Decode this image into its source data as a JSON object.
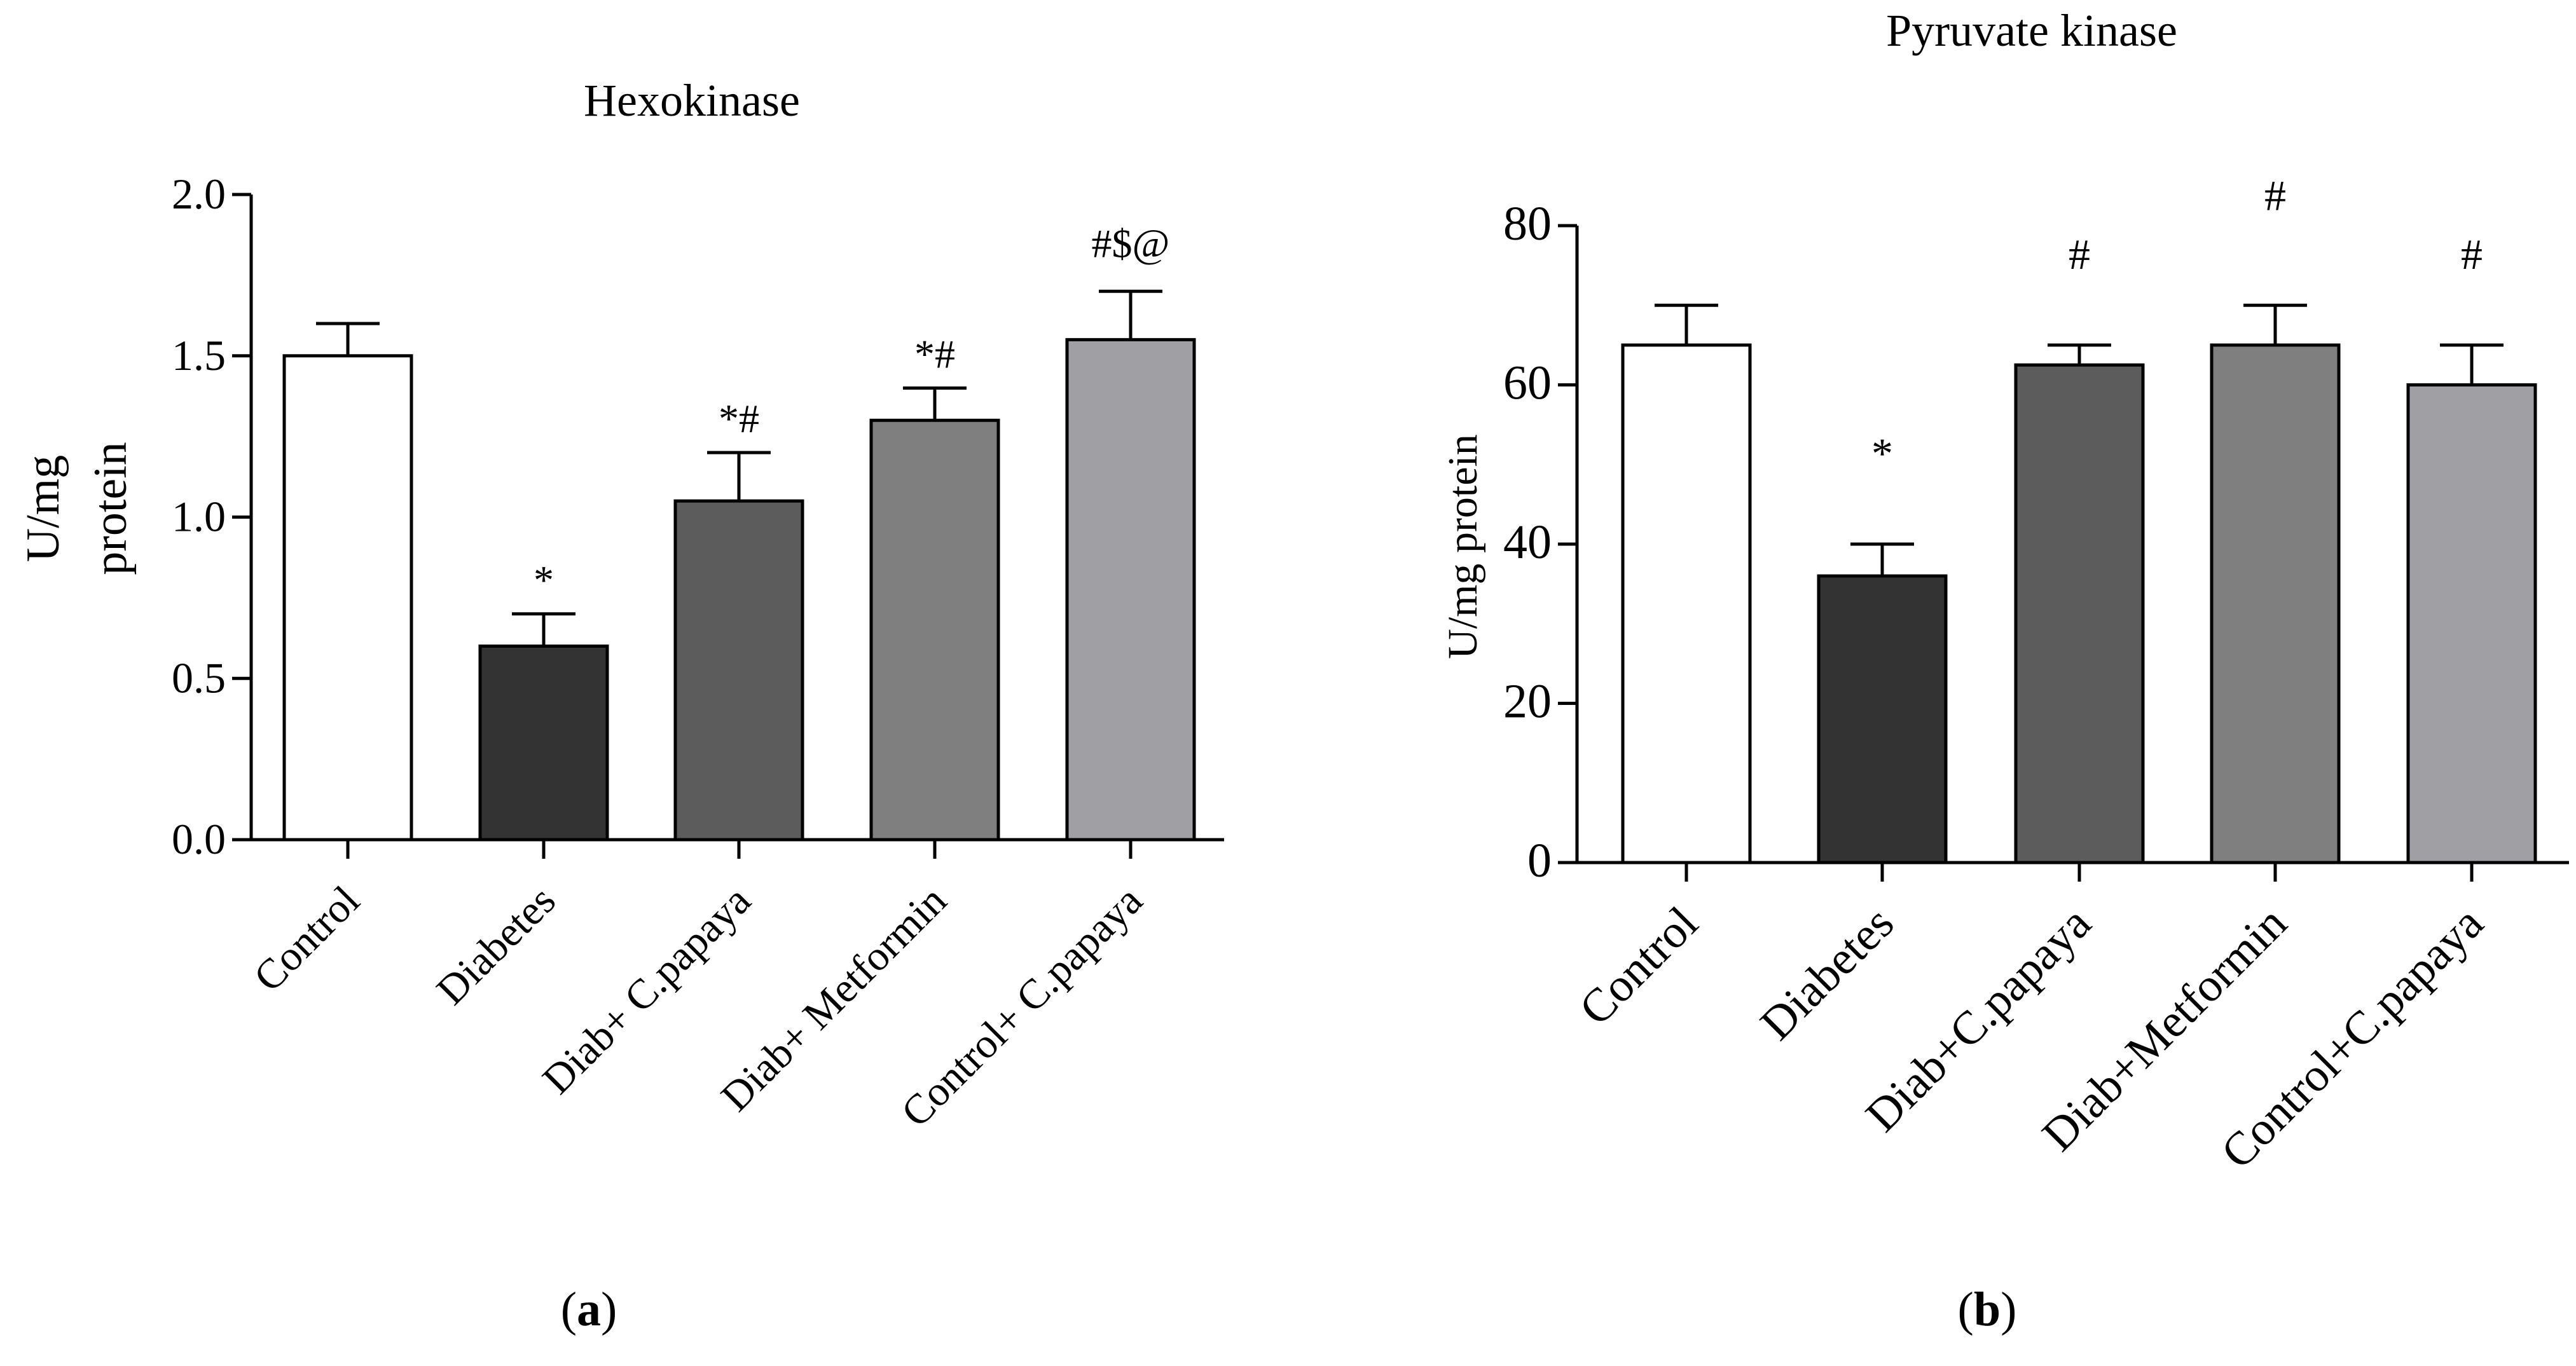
{
  "chart_data": [
    {
      "type": "bar",
      "title": "Hexokinase",
      "categories": [
        "Control",
        "Diabetes",
        "Diab+ C.papaya",
        "Diab+ Metformin",
        "Control+ C.papaya"
      ],
      "values": [
        1.5,
        0.6,
        1.05,
        1.3,
        1.55
      ],
      "errors": [
        0.1,
        0.1,
        0.15,
        0.1,
        0.15
      ],
      "significance": [
        "",
        "*",
        "*#",
        "*#",
        "#$@"
      ],
      "bar_colors": [
        "#ffffff",
        "#333333",
        "#5c5c5c",
        "#7f7f7f",
        "#a0a0a4"
      ],
      "ylabel_lines": [
        "U/mg",
        "protein"
      ],
      "ylim": [
        0,
        2.0
      ],
      "yticks": [
        "0.0",
        "0.5",
        "1.0",
        "1.5",
        "2.0"
      ],
      "panel_label": {
        "open": "(",
        "letter": "a",
        "close": ")"
      }
    },
    {
      "type": "bar",
      "title": "Pyruvate kinase",
      "categories": [
        "Control",
        "Diabetes",
        "Diab+C.papaya",
        "Diab+Metformin",
        "Control+C.papaya"
      ],
      "values": [
        65,
        36,
        62.5,
        65,
        60
      ],
      "errors": [
        5,
        4,
        2.5,
        5,
        5
      ],
      "significance": [
        "",
        "*",
        "#",
        "#",
        "#"
      ],
      "bar_colors": [
        "#ffffff",
        "#333333",
        "#5c5c5c",
        "#7f7f7f",
        "#a0a0a4"
      ],
      "ylabel": "U/mg protein",
      "ylim": [
        0,
        80
      ],
      "yticks": [
        "0",
        "20",
        "40",
        "60",
        "80"
      ],
      "panel_label": {
        "open": "(",
        "letter": "b",
        "close": ")"
      }
    }
  ]
}
